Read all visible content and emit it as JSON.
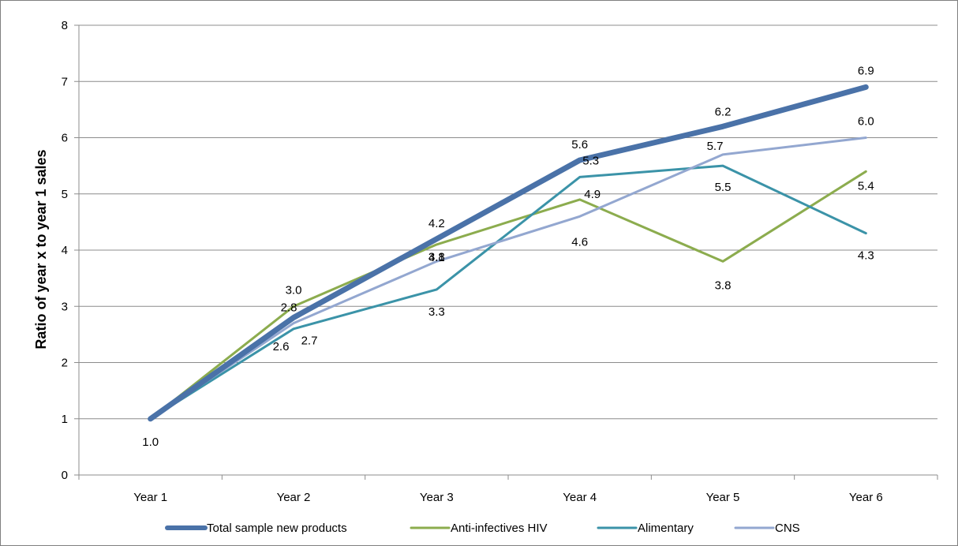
{
  "chart_data": {
    "type": "line",
    "ylabel": "Ratio of year x to year 1 sales",
    "xlabel": "",
    "ylim": [
      0,
      8
    ],
    "yticks": [
      0,
      1,
      2,
      3,
      4,
      5,
      6,
      7,
      8
    ],
    "grid": "horizontal",
    "legend_position": "bottom",
    "categories": [
      "Year 1",
      "Year 2",
      "Year 3",
      "Year 4",
      "Year 5",
      "Year 6"
    ],
    "series": [
      {
        "name": "Total sample new products",
        "color": "#4a72a8",
        "values": [
          1.0,
          2.8,
          4.2,
          5.6,
          6.2,
          6.9
        ],
        "labels": [
          "1.0",
          "2.8",
          "4.2",
          "5.6",
          "6.2",
          "6.9"
        ]
      },
      {
        "name": "Anti-infectives HIV",
        "color": "#8cac4e",
        "values": [
          1.0,
          3.0,
          4.1,
          4.9,
          3.8,
          5.4
        ],
        "labels": [
          "",
          "3.0",
          "4.1",
          "4.9",
          "3.8",
          "5.4"
        ]
      },
      {
        "name": "Alimentary",
        "color": "#3b93a8",
        "values": [
          1.0,
          2.6,
          3.3,
          5.3,
          5.5,
          4.3
        ],
        "labels": [
          "",
          "2.6",
          "3.3",
          "5.3",
          "5.5",
          "4.3"
        ]
      },
      {
        "name": "CNS",
        "color": "#93a7d0",
        "values": [
          1.0,
          2.7,
          3.8,
          4.6,
          5.7,
          6.0
        ],
        "labels": [
          "",
          "2.7",
          "3.8",
          "4.6",
          "5.7",
          "6.0"
        ]
      }
    ]
  }
}
